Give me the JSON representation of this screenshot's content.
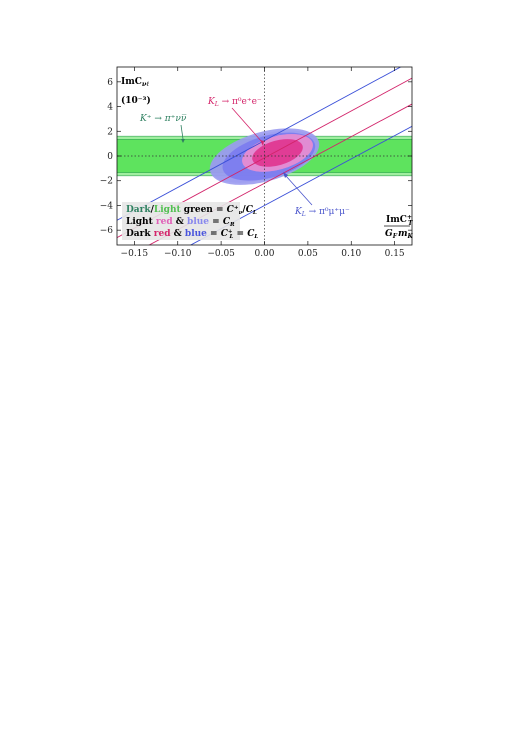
{
  "chart_data": {
    "type": "scatter",
    "x": {
      "min": -0.17,
      "max": 0.17,
      "ticks": [
        -0.15,
        -0.1,
        -0.05,
        0.0,
        0.05,
        0.1,
        0.15
      ],
      "tick_labels": [
        "−0.15",
        "−0.10",
        "−0.05",
        "0.00",
        "0.05",
        "0.10",
        "0.15"
      ]
    },
    "y": {
      "min": -7.2,
      "max": 7.2,
      "ticks": [
        -6,
        -4,
        -2,
        0,
        2,
        4,
        6
      ],
      "tick_labels": [
        "−6",
        "−4",
        "−2",
        "0",
        "2",
        "4",
        "6"
      ]
    },
    "ylabel": {
      "main": "ImC",
      "sub": "νℓ",
      "scale": "(10⁻³)"
    },
    "xlabel": {
      "num_main": "ImC",
      "num_sup": "+",
      "num_sub": "T",
      "den": "G",
      "den_sub_f": "F",
      "den_m": "m",
      "den_sub_k": "K"
    },
    "colors": {
      "dark_green": "#2e8b57",
      "light_green": "#52e052",
      "pink_light": "#e88bd0",
      "pink_dark": "#e0348f",
      "blue_light": "#9b9bf0",
      "blue_dark": "#5555ee",
      "line_red": "#d2246a",
      "line_blue": "#3a4fd8",
      "green_text": "#2e8060",
      "red_text": "#d4246a",
      "blue_text": "#4a55cc"
    },
    "bands": {
      "light_green": [
        -1.6,
        1.6
      ],
      "dark_green": [
        -1.35,
        1.35
      ]
    },
    "ellipses": [
      {
        "name": "blue-light",
        "cx": 0.0,
        "cy": -0.05,
        "rx": 0.065,
        "ry": 2.0
      },
      {
        "name": "blue-dark",
        "cx": 0.005,
        "cy": -0.05,
        "rx": 0.055,
        "ry": 1.7
      },
      {
        "name": "pink-light",
        "cx": 0.015,
        "cy": 0.25,
        "rx": 0.042,
        "ry": 1.35
      },
      {
        "name": "pink-dark",
        "cx": 0.015,
        "cy": 0.25,
        "rx": 0.03,
        "ry": 1.0
      }
    ],
    "lines_red": [
      {
        "x1": -0.17,
        "y1": -6.6,
        "x2": 0.17,
        "y2": 6.3
      },
      {
        "x1": -0.17,
        "y1": -8.6,
        "x2": 0.17,
        "y2": 4.2
      }
    ],
    "lines_blue": [
      {
        "x1": -0.17,
        "y1": -5.2,
        "x2": 0.17,
        "y2": 7.7
      },
      {
        "x1": -0.17,
        "y1": -10.4,
        "x2": 0.17,
        "y2": 2.4
      }
    ],
    "annotations": {
      "kplus": {
        "text": "K⁺ → π⁺νν̅"
      },
      "kl_ee": {
        "text": "K",
        "sub": "L",
        "rest": " → π⁰e⁺e⁻"
      },
      "kl_mumu": {
        "text": "K",
        "sub": "L",
        "rest": " → π⁰μ⁺μ⁻"
      }
    },
    "legend": {
      "row1": {
        "a": "Dark",
        "slash": "/",
        "b": "Light",
        "c": " green = ",
        "eq": "C⁺",
        "eq_sub": "ν",
        "tail": "/",
        "cl": "C",
        "cl_sub": "L"
      },
      "row2": {
        "a": "Light ",
        "b": "red",
        "c": " & ",
        "d": "blue",
        "e": " = ",
        "f": "C",
        "f_sub": "R"
      },
      "row3": {
        "a": "Dark ",
        "b": "red",
        "c": " & ",
        "d": "blue",
        "e": " = ",
        "f": "C",
        "f_sup": "+",
        "f_sub": "L",
        "g": " = ",
        "h": "C",
        "h_sub": "L"
      }
    }
  }
}
